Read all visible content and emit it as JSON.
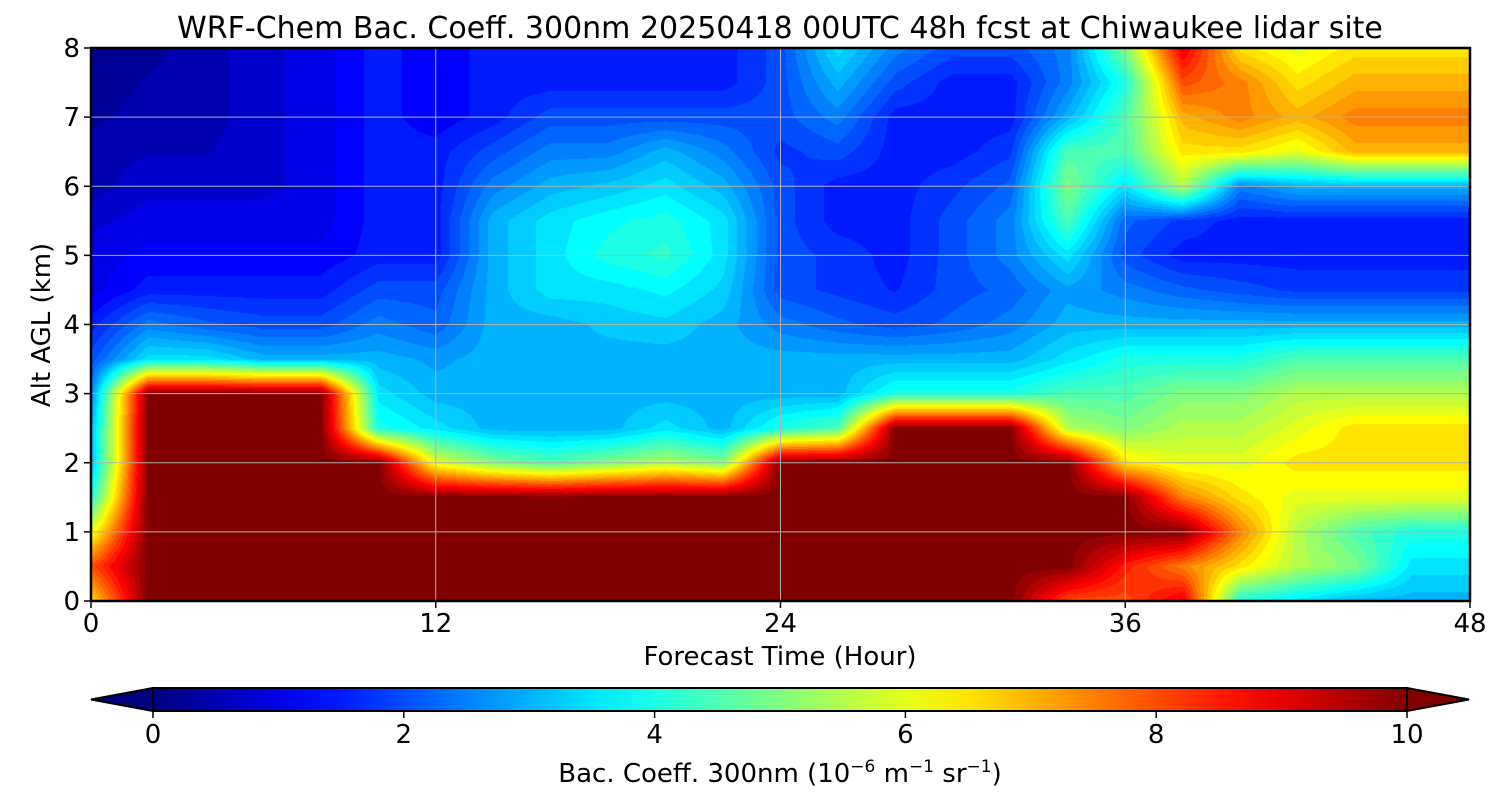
{
  "chart_data": {
    "type": "heatmap",
    "title": "WRF-Chem Bac. Coeff. 300nm  20250418 00UTC 48h fcst at Chiwaukee lidar site",
    "xlabel": "Forecast Time (Hour)",
    "ylabel": "Alt AGL (km)",
    "xlim": [
      0,
      48
    ],
    "ylim": [
      0,
      8
    ],
    "x_ticks": [
      0,
      12,
      24,
      36,
      48
    ],
    "y_ticks": [
      0,
      1,
      2,
      3,
      4,
      5,
      6,
      7,
      8
    ],
    "grid": true,
    "colormap": "jet",
    "colorbar": {
      "label_main": "Bac. Coeff. 300nm  (10",
      "label_exp1": "−6",
      "label_mid": " m",
      "label_exp2": "−1",
      "label_sr": " sr",
      "label_exp3": "−1",
      "label_close": ")",
      "range": [
        0,
        10
      ],
      "ticks": [
        0,
        2,
        4,
        6,
        8,
        10
      ],
      "extend": "both",
      "orientation": "horizontal",
      "placement": "bottom"
    },
    "z_units": "1e-6 m^-1 sr^-1",
    "x": [
      0,
      2,
      4,
      6,
      8,
      10,
      12,
      14,
      16,
      18,
      20,
      22,
      24,
      26,
      28,
      30,
      32,
      34,
      36,
      38,
      40,
      42,
      44,
      46,
      48
    ],
    "y": [
      0,
      0.5,
      1,
      1.5,
      2,
      2.5,
      3,
      3.5,
      4,
      4.5,
      5,
      5.5,
      6,
      6.5,
      7,
      7.5,
      8
    ],
    "z": [
      [
        6.5,
        10,
        10,
        10,
        10,
        10,
        10,
        10,
        10,
        10,
        10,
        10,
        10,
        10,
        10,
        10,
        10,
        8,
        8,
        9,
        4,
        3.5,
        3,
        3,
        3
      ],
      [
        8,
        10,
        10,
        10,
        10,
        10,
        10,
        10,
        10,
        10,
        10,
        10,
        10,
        10,
        10,
        10,
        10,
        10,
        8.5,
        7.5,
        6.5,
        5.5,
        5,
        3.5,
        3.5
      ],
      [
        6,
        10,
        10,
        10,
        10,
        10,
        10,
        10,
        10,
        10,
        10,
        10,
        10,
        10,
        10,
        10,
        10,
        10,
        10,
        10,
        7.5,
        5.5,
        4.5,
        4,
        4
      ],
      [
        4,
        10,
        10,
        10,
        10,
        10,
        10,
        10,
        10,
        10,
        10,
        10,
        10,
        10,
        10,
        10,
        10,
        10,
        10,
        7.5,
        6.5,
        6,
        6,
        6,
        6
      ],
      [
        3,
        10,
        10,
        10,
        10,
        10,
        6,
        5,
        4.5,
        5,
        5.5,
        5,
        10,
        10,
        10,
        10,
        10,
        10,
        6.5,
        6,
        6,
        6.5,
        6.5,
        6.5,
        6.5
      ],
      [
        3,
        10,
        10,
        10,
        10,
        4,
        3.5,
        3,
        3,
        3,
        3.5,
        3,
        4,
        4.5,
        10,
        10,
        10,
        5.5,
        5,
        5.5,
        5.5,
        6,
        6.5,
        6.5,
        6.5
      ],
      [
        2.5,
        10,
        10,
        10,
        10,
        3.5,
        3,
        3,
        3,
        3,
        3,
        3,
        3,
        3,
        4,
        4,
        4,
        4.5,
        4.5,
        5,
        5,
        5.5,
        5.5,
        5.5,
        5.5
      ],
      [
        2,
        3.5,
        3.5,
        3,
        3,
        3,
        2.8,
        3,
        3,
        3,
        3,
        3,
        3,
        3,
        3,
        3,
        3,
        3.5,
        4,
        4,
        4,
        4.5,
        4.5,
        4.5,
        4.5
      ],
      [
        1.5,
        2.5,
        2.2,
        2,
        2,
        2.5,
        2.2,
        3,
        3,
        3.2,
        3.3,
        3,
        2.5,
        2.2,
        2,
        2.2,
        2.5,
        3,
        3,
        3,
        3,
        3,
        3,
        3,
        3
      ],
      [
        1,
        1.5,
        1.5,
        1.5,
        1.5,
        2,
        2,
        3,
        3.5,
        3.5,
        3.7,
        3.3,
        2,
        1.8,
        1.6,
        2,
        2.2,
        2.8,
        2.5,
        2.2,
        2,
        1.8,
        1.8,
        1.8,
        1.8
      ],
      [
        1,
        1.2,
        1.2,
        1.2,
        1.2,
        1.5,
        1.5,
        3,
        3.5,
        4,
        4.2,
        3.5,
        2,
        1.8,
        1.5,
        2,
        2.5,
        3.5,
        2,
        1.5,
        1.5,
        1.5,
        1.5,
        1.5,
        1.5
      ],
      [
        0.8,
        1,
        1,
        1,
        1,
        1.5,
        1.5,
        3,
        3.5,
        3.8,
        4,
        3.5,
        2,
        1.5,
        1.5,
        2,
        2.5,
        4.5,
        2.2,
        1.8,
        1.5,
        1.5,
        1.5,
        1.5,
        1.5
      ],
      [
        0.5,
        0.8,
        0.8,
        0.8,
        1,
        1.5,
        1.5,
        2.5,
        3,
        3.2,
        3.5,
        3,
        2,
        1.5,
        1.5,
        1.8,
        2.2,
        5,
        3.5,
        5.5,
        2.5,
        3,
        3,
        3,
        3
      ],
      [
        0.5,
        0.6,
        0.6,
        0.8,
        1,
        1.5,
        1.5,
        2,
        2.5,
        2.5,
        3,
        2.5,
        1.8,
        2,
        1.5,
        1.5,
        1.8,
        4.5,
        4.5,
        6.5,
        6.5,
        6,
        7,
        7,
        7
      ],
      [
        0.3,
        0.5,
        0.5,
        0.8,
        1,
        1.5,
        1.2,
        1.5,
        2,
        2,
        2,
        2,
        2,
        2.5,
        1.5,
        1.5,
        1.5,
        3,
        4.5,
        7,
        7.5,
        7,
        7.5,
        7.5,
        7.5
      ],
      [
        0.2,
        0.4,
        0.5,
        0.8,
        1,
        1.5,
        1.2,
        1.5,
        1.5,
        1.5,
        1.5,
        1.5,
        2,
        3,
        2,
        1.5,
        1.5,
        2.5,
        4,
        8,
        7.5,
        6.5,
        7,
        7,
        7
      ],
      [
        0.2,
        0.3,
        0.5,
        0.8,
        1,
        1.5,
        1.2,
        1.5,
        1.5,
        1.5,
        1.5,
        1.5,
        2,
        3.5,
        2.5,
        2,
        2,
        2.5,
        5,
        9,
        6.5,
        6,
        6.5,
        6.5,
        6.5
      ]
    ]
  }
}
